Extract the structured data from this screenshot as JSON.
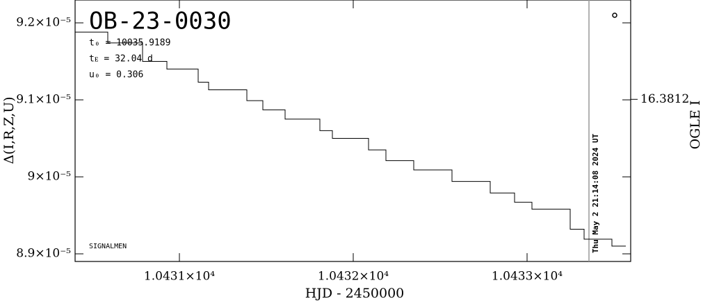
{
  "chart_data": {
    "type": "line",
    "drawstyle": "steps-post",
    "title": "OB-23-0030",
    "params": [
      "t₀ = 10035.9189",
      "tᴇ = 32.04 d",
      "u₀ = 0.306"
    ],
    "credit": "SIGNALMEN",
    "timestamp": "Thu May  2 21:14:08 2024 UT",
    "x_label": "HJD - 2450000",
    "y_label": "Δ(I,R,Z,U)",
    "y2_label": "OGLE I",
    "color": "#000000",
    "x": [
      10430.4,
      10430.588,
      10430.788,
      10430.928,
      10431.108,
      10431.168,
      10431.388,
      10431.48,
      10431.608,
      10431.808,
      10431.88,
      10432.088,
      10432.188,
      10432.348,
      10432.568,
      10432.788,
      10432.928,
      10433.028,
      10433.248,
      10433.328,
      10433.488,
      10433.568
    ],
    "values": [
      9.188e-05,
      9.174e-05,
      9.15e-05,
      9.14e-05,
      9.123e-05,
      9.113e-05,
      9.099e-05,
      9.087e-05,
      9.075e-05,
      9.06e-05,
      9.05e-05,
      9.035e-05,
      9.021e-05,
      9.009e-05,
      8.994e-05,
      8.979e-05,
      8.967e-05,
      8.958e-05,
      8.932e-05,
      8.919e-05,
      8.91e-05,
      8.91e-05
    ],
    "xlim": [
      10430.4,
      10433.596
    ],
    "xticks": [
      {
        "value": 10431,
        "label": "1.0431×10⁴"
      },
      {
        "value": 10432,
        "label": "1.0432×10⁴"
      },
      {
        "value": 10433,
        "label": "1.0433×10⁴"
      }
    ],
    "ylim": [
      8.8901e-05,
      9.2297e-05
    ],
    "yticks": [
      {
        "value": 8.9e-05,
        "label": "8.9×10⁻⁵"
      },
      {
        "value": 9e-05,
        "label": "9×10⁻⁵"
      },
      {
        "value": 9.1e-05,
        "label": "9.1×10⁻⁵"
      },
      {
        "value": 9.2e-05,
        "label": "9.2×10⁻⁵"
      }
    ],
    "y2lim": [
      16.3905,
      16.3755
    ],
    "y2ticks": [
      16.3812
    ],
    "now_line": 10433.356
  }
}
